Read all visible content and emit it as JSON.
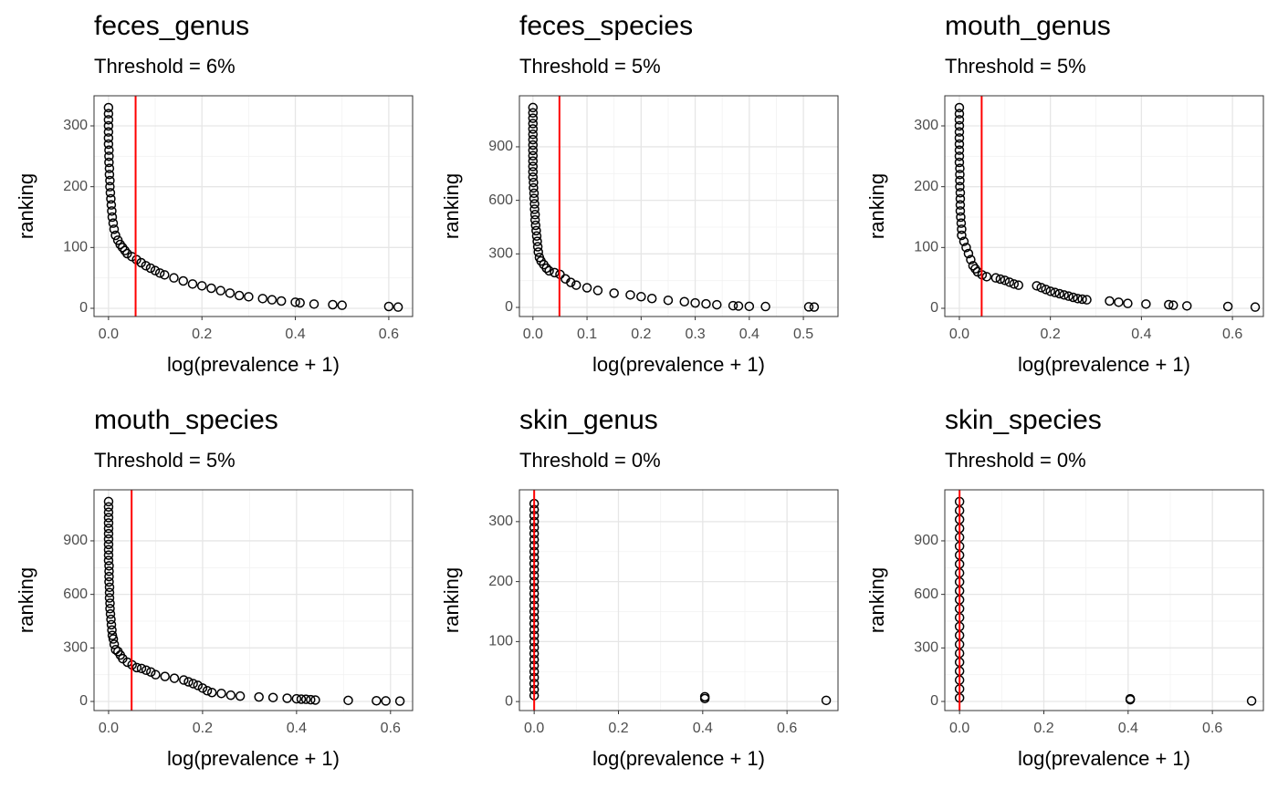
{
  "chart_data": [
    {
      "type": "scatter",
      "title": "feces_genus",
      "subtitle": "Threshold = 6%",
      "xlabel": "log(prevalence + 1)",
      "ylabel": "ranking",
      "x": [
        0,
        0,
        0,
        0,
        0,
        0,
        0,
        0.001,
        0.001,
        0.001,
        0.002,
        0.002,
        0.003,
        0.003,
        0.004,
        0.005,
        0.006,
        0.007,
        0.008,
        0.01,
        0.012,
        0.015,
        0.02,
        0.025,
        0.03,
        0.035,
        0.04,
        0.05,
        0.06,
        0.07,
        0.08,
        0.09,
        0.1,
        0.11,
        0.12,
        0.14,
        0.16,
        0.18,
        0.2,
        0.22,
        0.24,
        0.26,
        0.28,
        0.3,
        0.33,
        0.35,
        0.37,
        0.4,
        0.41,
        0.44,
        0.48,
        0.5,
        0.6,
        0.62
      ],
      "y": [
        330,
        320,
        310,
        300,
        290,
        280,
        270,
        260,
        250,
        240,
        230,
        220,
        210,
        200,
        190,
        180,
        170,
        160,
        150,
        140,
        130,
        120,
        112,
        105,
        100,
        95,
        90,
        85,
        80,
        75,
        70,
        66,
        62,
        58,
        55,
        50,
        45,
        40,
        37,
        33,
        29,
        25,
        21,
        19,
        16,
        14,
        12,
        10,
        9,
        7,
        6,
        5,
        3,
        2
      ],
      "xlim": [
        -0.031,
        0.651
      ],
      "ylim": [
        -13.5,
        349.5
      ],
      "xticks": [
        {
          "value": 0,
          "label": "0.0"
        },
        0.2,
        0.4,
        0.6
      ],
      "yticks": [
        0,
        100,
        200,
        300
      ],
      "threshold": 0.058,
      "threshold_color": "#ff0000",
      "color": "#000000",
      "grid": true
    },
    {
      "type": "scatter",
      "title": "feces_species",
      "subtitle": "Threshold = 5%",
      "xlabel": "log(prevalence + 1)",
      "ylabel": "ranking",
      "x": [
        0,
        0,
        0,
        0,
        0,
        0,
        0,
        0,
        0,
        0,
        0,
        0,
        0,
        0,
        0.001,
        0.001,
        0.002,
        0.002,
        0.003,
        0.003,
        0.004,
        0.004,
        0.005,
        0.006,
        0.007,
        0.008,
        0.009,
        0.01,
        0.012,
        0.015,
        0.02,
        0.025,
        0.03,
        0.04,
        0.05,
        0.06,
        0.07,
        0.08,
        0.1,
        0.12,
        0.15,
        0.18,
        0.2,
        0.22,
        0.25,
        0.28,
        0.3,
        0.32,
        0.34,
        0.37,
        0.38,
        0.4,
        0.43,
        0.51,
        0.52
      ],
      "y": [
        1120,
        1090,
        1060,
        1030,
        1000,
        970,
        940,
        910,
        880,
        850,
        820,
        790,
        760,
        730,
        700,
        670,
        640,
        610,
        580,
        550,
        520,
        490,
        460,
        430,
        400,
        370,
        340,
        310,
        280,
        260,
        240,
        220,
        205,
        195,
        185,
        160,
        140,
        125,
        110,
        95,
        80,
        70,
        60,
        50,
        40,
        32,
        25,
        20,
        15,
        10,
        8,
        6,
        5,
        3,
        2
      ],
      "xlim": [
        -0.025,
        0.564
      ],
      "ylim": [
        -51,
        1186
      ],
      "xticks": [
        {
          "value": 0,
          "label": "0.0"
        },
        0.1,
        0.2,
        0.3,
        0.4,
        0.5
      ],
      "yticks": [
        0,
        300,
        600,
        900
      ],
      "threshold": 0.049,
      "threshold_color": "#ff0000",
      "color": "#000000",
      "grid": true
    },
    {
      "type": "scatter",
      "title": "mouth_genus",
      "subtitle": "Threshold = 5%",
      "xlabel": "log(prevalence + 1)",
      "ylabel": "ranking",
      "x": [
        0,
        0,
        0,
        0,
        0,
        0,
        0,
        0,
        0,
        0,
        0.001,
        0.001,
        0.001,
        0.001,
        0.002,
        0.002,
        0.002,
        0.002,
        0.003,
        0.004,
        0.005,
        0.005,
        0.01,
        0.015,
        0.02,
        0.025,
        0.03,
        0.035,
        0.04,
        0.05,
        0.06,
        0.08,
        0.09,
        0.1,
        0.11,
        0.12,
        0.13,
        0.17,
        0.18,
        0.19,
        0.2,
        0.21,
        0.22,
        0.23,
        0.24,
        0.25,
        0.26,
        0.27,
        0.28,
        0.33,
        0.35,
        0.37,
        0.41,
        0.46,
        0.47,
        0.5,
        0.59,
        0.65
      ],
      "y": [
        330,
        320,
        310,
        300,
        290,
        280,
        270,
        260,
        250,
        240,
        230,
        220,
        210,
        200,
        190,
        180,
        170,
        160,
        150,
        140,
        130,
        120,
        110,
        100,
        90,
        80,
        70,
        65,
        60,
        55,
        52,
        50,
        48,
        46,
        43,
        40,
        38,
        37,
        34,
        31,
        28,
        26,
        24,
        22,
        20,
        18,
        16,
        15,
        14,
        12,
        10,
        8,
        7,
        6,
        5,
        4,
        3,
        2
      ],
      "xlim": [
        -0.032,
        0.668
      ],
      "ylim": [
        -13.5,
        349.5
      ],
      "xticks": [
        {
          "value": 0,
          "label": "0.0"
        },
        0.2,
        0.4,
        0.6
      ],
      "yticks": [
        0,
        100,
        200,
        300
      ],
      "threshold": 0.049,
      "threshold_color": "#ff0000",
      "color": "#000000",
      "grid": true
    },
    {
      "type": "scatter",
      "title": "mouth_species",
      "subtitle": "Threshold = 5%",
      "xlabel": "log(prevalence + 1)",
      "ylabel": "ranking",
      "x": [
        0,
        0,
        0,
        0,
        0,
        0,
        0,
        0,
        0,
        0,
        0,
        0,
        0.001,
        0.001,
        0.001,
        0.001,
        0.002,
        0.002,
        0.002,
        0.003,
        0.003,
        0.004,
        0.005,
        0.006,
        0.007,
        0.008,
        0.01,
        0.012,
        0.015,
        0.02,
        0.025,
        0.03,
        0.04,
        0.05,
        0.06,
        0.07,
        0.08,
        0.09,
        0.1,
        0.12,
        0.14,
        0.16,
        0.17,
        0.18,
        0.19,
        0.2,
        0.21,
        0.22,
        0.24,
        0.26,
        0.28,
        0.32,
        0.35,
        0.38,
        0.4,
        0.41,
        0.42,
        0.43,
        0.44,
        0.51,
        0.57,
        0.59,
        0.62
      ],
      "y": [
        1120,
        1090,
        1060,
        1030,
        1000,
        970,
        940,
        910,
        880,
        850,
        820,
        790,
        760,
        730,
        700,
        670,
        640,
        610,
        580,
        550,
        520,
        490,
        460,
        430,
        400,
        370,
        350,
        320,
        290,
        280,
        260,
        240,
        220,
        205,
        190,
        185,
        175,
        165,
        150,
        140,
        130,
        120,
        110,
        100,
        90,
        75,
        60,
        50,
        45,
        35,
        30,
        25,
        22,
        18,
        15,
        13,
        12,
        10,
        8,
        6,
        4,
        3,
        2
      ],
      "xlim": [
        -0.031,
        0.647
      ],
      "ylim": [
        -51,
        1186
      ],
      "xticks": [
        {
          "value": 0,
          "label": "0.0"
        },
        0.2,
        0.4,
        0.6
      ],
      "yticks": [
        0,
        300,
        600,
        900
      ],
      "threshold": 0.049,
      "threshold_color": "#ff0000",
      "color": "#000000",
      "grid": true
    },
    {
      "type": "scatter",
      "title": "skin_genus",
      "subtitle": "Threshold = 0%",
      "xlabel": "log(prevalence + 1)",
      "ylabel": "ranking",
      "x": [
        0,
        0,
        0,
        0,
        0,
        0,
        0,
        0,
        0,
        0,
        0,
        0,
        0,
        0,
        0,
        0,
        0,
        0,
        0,
        0,
        0,
        0,
        0,
        0,
        0,
        0,
        0,
        0,
        0,
        0,
        0,
        0,
        0,
        0.405,
        0.405,
        0.693
      ],
      "y": [
        330,
        320,
        310,
        300,
        290,
        280,
        270,
        260,
        250,
        240,
        230,
        220,
        210,
        200,
        190,
        180,
        170,
        160,
        150,
        140,
        130,
        120,
        110,
        100,
        90,
        80,
        70,
        60,
        50,
        40,
        30,
        20,
        10,
        8,
        5,
        2
      ],
      "xlim": [
        -0.035,
        0.721
      ],
      "ylim": [
        -15,
        353
      ],
      "xticks": [
        {
          "value": 0,
          "label": "0.0"
        },
        0.2,
        0.4,
        0.6
      ],
      "yticks": [
        0,
        100,
        200,
        300
      ],
      "threshold": 0,
      "threshold_color": "#ff0000",
      "color": "#000000",
      "grid": true
    },
    {
      "type": "scatter",
      "title": "skin_species",
      "subtitle": "Threshold = 0%",
      "xlabel": "log(prevalence + 1)",
      "ylabel": "ranking",
      "x": [
        0,
        0,
        0,
        0,
        0,
        0,
        0,
        0,
        0,
        0,
        0,
        0,
        0,
        0,
        0,
        0,
        0,
        0,
        0,
        0,
        0,
        0,
        0,
        0.405,
        0.405,
        0.693
      ],
      "y": [
        1120,
        1070,
        1020,
        970,
        920,
        870,
        820,
        770,
        720,
        670,
        620,
        570,
        520,
        470,
        420,
        370,
        320,
        270,
        220,
        170,
        120,
        70,
        20,
        15,
        10,
        3
      ],
      "xlim": [
        -0.035,
        0.721
      ],
      "ylim": [
        -51,
        1186
      ],
      "xticks": [
        {
          "value": 0,
          "label": "0.0"
        },
        0.2,
        0.4,
        0.6
      ],
      "yticks": [
        0,
        300,
        600,
        900
      ],
      "threshold": 0,
      "threshold_color": "#ff0000",
      "color": "#000000",
      "grid": true
    }
  ]
}
